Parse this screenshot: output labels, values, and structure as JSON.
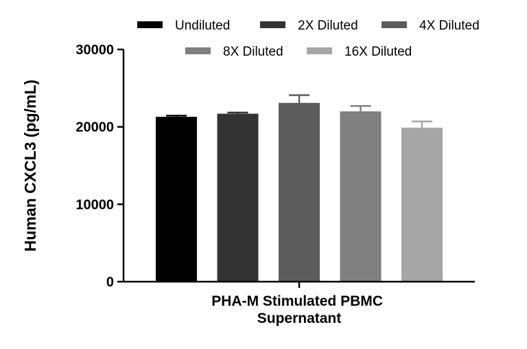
{
  "chart_data": {
    "type": "bar",
    "title": "",
    "xlabel": "PHA-M Stimulated PBMC\nSupernatant",
    "ylabel": "Human CXCL3 (pg/mL)",
    "ylim": [
      0,
      30000
    ],
    "yticks": [
      0,
      10000,
      20000,
      30000
    ],
    "categories": [
      "PHA-M Stimulated PBMC Supernatant"
    ],
    "legend_position": "top",
    "grid": false,
    "series": [
      {
        "name": "Undiluted",
        "values": [
          21300
        ],
        "error": [
          150
        ],
        "color": "#000000"
      },
      {
        "name": "2X Diluted",
        "values": [
          21700
        ],
        "error": [
          150
        ],
        "color": "#333333"
      },
      {
        "name": "4X Diluted",
        "values": [
          23100
        ],
        "error": [
          1000
        ],
        "color": "#5c5c5c"
      },
      {
        "name": "8X Diluted",
        "values": [
          22000
        ],
        "error": [
          700
        ],
        "color": "#808080"
      },
      {
        "name": "16X Diluted",
        "values": [
          19900
        ],
        "error": [
          800
        ],
        "color": "#a6a6a6"
      }
    ]
  }
}
